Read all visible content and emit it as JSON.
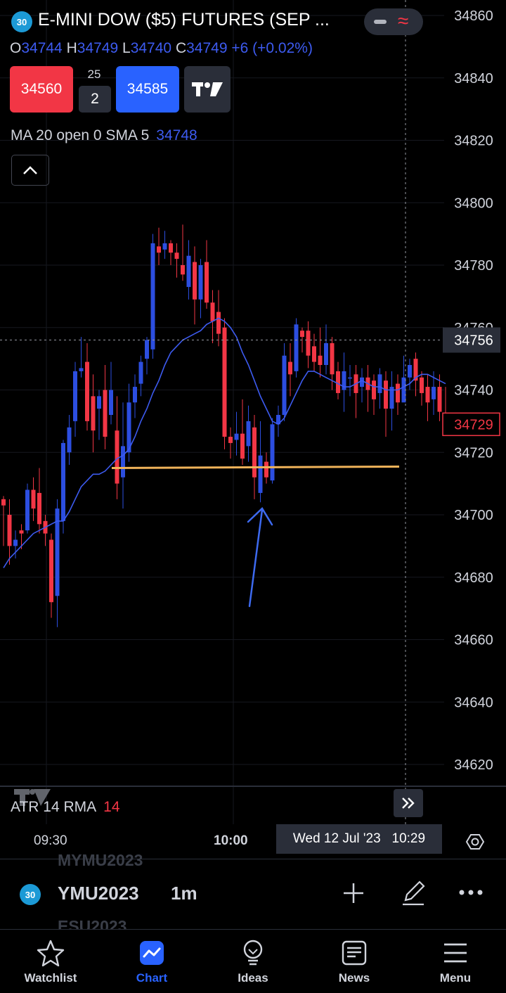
{
  "header": {
    "badge": "30",
    "title": "E-MINI DOW ($5) FUTURES (SEP ...",
    "ohlc": {
      "o_label": "O",
      "o": "34744",
      "h_label": "H",
      "h": "34749",
      "l_label": "L",
      "l": "34740",
      "c_label": "C",
      "c": "34749",
      "change": "+6 (+0.02%)"
    }
  },
  "trade": {
    "sell": "34560",
    "spread": "25",
    "qty": "2",
    "buy": "34585"
  },
  "indicator": {
    "label": "MA 20 open 0 SMA 5",
    "value": "34748"
  },
  "price_axis": {
    "ticks": [
      "34860",
      "34840",
      "34820",
      "34800",
      "34780",
      "34760",
      "34740",
      "34720",
      "34700",
      "34680",
      "34660",
      "34640",
      "34620"
    ],
    "crosshair_price": "34756",
    "last_price": "34729",
    "last_price_color": "#f23645"
  },
  "colors": {
    "up": "#2c4ee0",
    "down": "#f23645",
    "ma": "#3d5bf0",
    "support": "#f0b35a",
    "annotation": "#3d6af0",
    "active": "#2962ff"
  },
  "atr": {
    "label": "ATR 14 RMA",
    "value": "14"
  },
  "time_axis": {
    "t1": "09:30",
    "t2": "10:00",
    "crosshair_label": "Wed 12 Jul '23   10:29"
  },
  "symbol_bar": {
    "badge": "30",
    "symbol": "YMU2023",
    "timeframe": "1m",
    "prev": "MYMU2023",
    "next": "ESU2023"
  },
  "nav": [
    {
      "label": "Watchlist",
      "icon": "star-icon"
    },
    {
      "label": "Chart",
      "icon": "chart-icon"
    },
    {
      "label": "Ideas",
      "icon": "lightbulb-icon"
    },
    {
      "label": "News",
      "icon": "news-icon"
    },
    {
      "label": "Menu",
      "icon": "menu-icon"
    }
  ],
  "chart_data": {
    "type": "candlestick",
    "ylim": [
      34610,
      34865
    ],
    "candles": [
      [
        34705,
        34703,
        34706,
        34690
      ],
      [
        34700,
        34690,
        34705,
        34684
      ],
      [
        34690,
        34692,
        34695,
        34686
      ],
      [
        34695,
        34694,
        34697,
        34689
      ],
      [
        34695,
        34708,
        34710,
        34694
      ],
      [
        34708,
        34702,
        34712,
        34698
      ],
      [
        34707,
        34697,
        34715,
        34694
      ],
      [
        34698,
        34694,
        34700,
        34690
      ],
      [
        34692,
        34672,
        34694,
        34667
      ],
      [
        34674,
        34702,
        34705,
        34664
      ],
      [
        34698,
        34723,
        34724,
        34694
      ],
      [
        34720,
        34728,
        34732,
        34716
      ],
      [
        34730,
        34746,
        34749,
        34725
      ],
      [
        34746,
        34747,
        34757,
        34744
      ],
      [
        34749,
        34730,
        34755,
        34727
      ],
      [
        34738,
        34727,
        34745,
        34720
      ],
      [
        34734,
        34738,
        34740,
        34724
      ],
      [
        34740,
        34725,
        34748,
        34721
      ],
      [
        34732,
        34740,
        34749,
        34729
      ],
      [
        34727,
        34710,
        34738,
        34705
      ],
      [
        34712,
        34722,
        34736,
        34702
      ],
      [
        34720,
        34736,
        34742,
        34717
      ],
      [
        34736,
        34741,
        34745,
        34731
      ],
      [
        34742,
        34749,
        34751,
        34738
      ],
      [
        34750,
        34756,
        34757,
        34745
      ],
      [
        34753,
        34787,
        34790,
        34750
      ],
      [
        34786,
        34784,
        34792,
        34780
      ],
      [
        34785,
        34787,
        34791,
        34782
      ],
      [
        34787,
        34784,
        34788,
        34780
      ],
      [
        34784,
        34782,
        34787,
        34776
      ],
      [
        34780,
        34777,
        34793,
        34775
      ],
      [
        34773,
        34783,
        34788,
        34769
      ],
      [
        34781,
        34769,
        34786,
        34761
      ],
      [
        34769,
        34780,
        34782,
        34763
      ],
      [
        34781,
        34768,
        34788,
        34766
      ],
      [
        34768,
        34762,
        34772,
        34755
      ],
      [
        34765,
        34758,
        34772,
        34754
      ],
      [
        34760,
        34725,
        34763,
        34721
      ],
      [
        34725,
        34723,
        34728,
        34718
      ],
      [
        34724,
        34726,
        34733,
        34719
      ],
      [
        34726,
        34718,
        34737,
        34716
      ],
      [
        34722,
        34730,
        34735,
        34717
      ],
      [
        34728,
        34712,
        34732,
        34705
      ],
      [
        34707,
        34719,
        34730,
        34704
      ],
      [
        34717,
        34712,
        34720,
        34710
      ],
      [
        34711,
        34729,
        34731,
        34710
      ],
      [
        34729,
        34732,
        34735,
        34725
      ],
      [
        34732,
        34751,
        34755,
        34730
      ],
      [
        34749,
        34745,
        34755,
        34738
      ],
      [
        34746,
        34761,
        34763,
        34744
      ],
      [
        34759,
        34757,
        34760,
        34752
      ],
      [
        34759,
        34751,
        34762,
        34747
      ],
      [
        34754,
        34749,
        34758,
        34746
      ],
      [
        34751,
        34748,
        34760,
        34744
      ],
      [
        34748,
        34755,
        34761,
        34745
      ],
      [
        34755,
        34745,
        34757,
        34740
      ],
      [
        34746,
        34739,
        34749,
        34737
      ],
      [
        34740,
        34746,
        34752,
        34733
      ],
      [
        34744,
        34744,
        34748,
        34738
      ],
      [
        34745,
        34739,
        34748,
        34731
      ],
      [
        34741,
        34744,
        34747,
        34736
      ],
      [
        34744,
        34740,
        34748,
        34733
      ],
      [
        34743,
        34737,
        34745,
        34732
      ],
      [
        34739,
        34745,
        34747,
        34734
      ],
      [
        34743,
        34734,
        34746,
        34725
      ],
      [
        34734,
        34741,
        34746,
        34727
      ],
      [
        34742,
        34736,
        34745,
        34732
      ],
      [
        34736,
        34744,
        34751,
        34737
      ],
      [
        34744,
        34748,
        34750,
        34740
      ],
      [
        34750,
        34743,
        34752,
        34738
      ],
      [
        34744,
        34739,
        34746,
        34735
      ],
      [
        34741,
        34736,
        34745,
        34730
      ],
      [
        34737,
        34741,
        34746,
        34732
      ],
      [
        34741,
        34733,
        34745,
        34730
      ],
      [
        34732,
        34729,
        34741,
        34727
      ]
    ],
    "ma_series": [
      34683,
      34686,
      34688,
      34690,
      34692,
      34694,
      34695,
      34696,
      34697,
      34698,
      34698,
      34701,
      34705,
      34709,
      34711,
      34713,
      34713,
      34714,
      34716,
      34718,
      34719,
      34721,
      34725,
      34730,
      34734,
      34739,
      34743,
      34748,
      34752,
      34754,
      34756,
      34757,
      34758,
      34759,
      34761,
      34762,
      34763,
      34762,
      34760,
      34757,
      34752,
      34748,
      34743,
      34738,
      34734,
      34730,
      34729,
      34731,
      34735,
      34739,
      34743,
      34746,
      34746,
      34745,
      34744,
      34743,
      34742,
      34741,
      34741,
      34742,
      34743,
      34742,
      34741,
      34741,
      34740,
      34740,
      34740,
      34741,
      34742,
      34744,
      34745,
      34745,
      34744,
      34743,
      34742
    ],
    "support_level": 34715
  }
}
